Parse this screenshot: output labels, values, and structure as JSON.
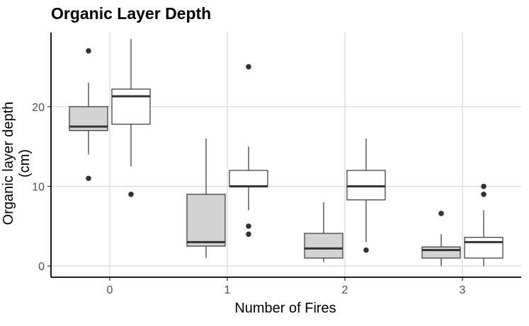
{
  "chart_data": {
    "type": "boxplot",
    "title": "Organic Layer Depth",
    "xlabel": "Number of Fires",
    "ylabel": "Organic layer depth (cm)",
    "categories": [
      "0",
      "1",
      "2",
      "3"
    ],
    "yticks": [
      0,
      10,
      20
    ],
    "ylim": [
      -1.4,
      29.3
    ],
    "grid": true,
    "legend": "none",
    "colors": {
      "series_a": "#d3d3d3",
      "series_b": "#ffffff",
      "stroke": "#333333",
      "grid": "#d9d9d9"
    },
    "series": [
      {
        "fill": "#d3d3d3",
        "boxes": [
          {
            "min": 14,
            "q1": 17,
            "median": 17.5,
            "q3": 20,
            "max": 23,
            "outliers": [
              27,
              11
            ]
          },
          {
            "min": 1,
            "q1": 2.5,
            "median": 3,
            "q3": 9,
            "max": 16,
            "outliers": []
          },
          {
            "min": 0.5,
            "q1": 1,
            "median": 2.2,
            "q3": 4.1,
            "max": 8,
            "outliers": []
          },
          {
            "min": 0,
            "q1": 1,
            "median": 2,
            "q3": 2.4,
            "max": 4,
            "outliers": [
              6.6
            ]
          }
        ]
      },
      {
        "fill": "#ffffff",
        "boxes": [
          {
            "min": 12.5,
            "q1": 17.8,
            "median": 21.3,
            "q3": 22.2,
            "max": 28.5,
            "outliers": [
              9
            ]
          },
          {
            "min": 7,
            "q1": 10,
            "median": 10,
            "q3": 12,
            "max": 15,
            "outliers": [
              25,
              5,
              4
            ]
          },
          {
            "min": 3,
            "q1": 8.3,
            "median": 10,
            "q3": 12,
            "max": 16,
            "outliers": [
              2
            ]
          },
          {
            "min": 0,
            "q1": 1,
            "median": 3,
            "q3": 3.6,
            "max": 7,
            "outliers": [
              10,
              9
            ]
          }
        ]
      }
    ]
  }
}
